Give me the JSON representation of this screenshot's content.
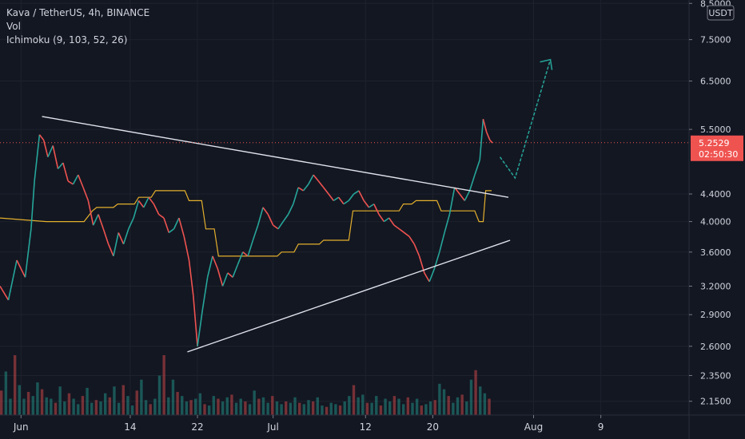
{
  "legend": {
    "title": "Kava / TetherUS, 4h, BINANCE",
    "vol": "Vol",
    "ichimoku": "Ichimoku (9, 103, 52, 26)"
  },
  "chart_data": {
    "type": "line",
    "symbol": "Kava / TetherUS",
    "interval": "4h",
    "exchange": "BINANCE",
    "currency": "USDT",
    "y_scale": "log",
    "ylim": [
      2.05,
      8.6
    ],
    "y_ticks": [
      {
        "label": "8.5000",
        "value": 8.5
      },
      {
        "label": "7.5000",
        "value": 7.5
      },
      {
        "label": "6.5000",
        "value": 6.5
      },
      {
        "label": "5.5000",
        "value": 5.5
      },
      {
        "label": "4.4000",
        "value": 4.4
      },
      {
        "label": "4.0000",
        "value": 4.0
      },
      {
        "label": "3.6000",
        "value": 3.6
      },
      {
        "label": "3.2000",
        "value": 3.2
      },
      {
        "label": "2.9000",
        "value": 2.9
      },
      {
        "label": "2.6000",
        "value": 2.6
      },
      {
        "label": "2.3500",
        "value": 2.35
      },
      {
        "label": "2.1500",
        "value": 2.15
      }
    ],
    "x_ticks": [
      {
        "label": "Jun",
        "day": 0
      },
      {
        "label": "14",
        "day": 13
      },
      {
        "label": "22",
        "day": 21
      },
      {
        "label": "Jul",
        "day": 30
      },
      {
        "label": "12",
        "day": 41
      },
      {
        "label": "20",
        "day": 49
      },
      {
        "label": "Aug",
        "day": 61
      },
      {
        "label": "9",
        "day": 69
      }
    ],
    "xlim": [
      -2.5,
      79.5
    ],
    "last_price": {
      "value": 5.2529,
      "label": "5.2529",
      "countdown": "02:50:30"
    },
    "price_path": [
      [
        -2.5,
        3.2
      ],
      [
        -1.5,
        3.05
      ],
      [
        -0.5,
        3.5
      ],
      [
        0.5,
        3.3
      ],
      [
        1.2,
        3.9
      ],
      [
        1.6,
        4.6
      ],
      [
        2.2,
        5.4
      ],
      [
        2.7,
        5.3
      ],
      [
        3.2,
        5.0
      ],
      [
        3.8,
        5.2
      ],
      [
        4.4,
        4.8
      ],
      [
        5.0,
        4.9
      ],
      [
        5.6,
        4.6
      ],
      [
        6.2,
        4.55
      ],
      [
        6.8,
        4.7
      ],
      [
        7.4,
        4.5
      ],
      [
        8.0,
        4.3
      ],
      [
        8.6,
        3.95
      ],
      [
        9.2,
        4.1
      ],
      [
        9.8,
        3.9
      ],
      [
        10.4,
        3.7
      ],
      [
        11.0,
        3.55
      ],
      [
        11.6,
        3.85
      ],
      [
        12.2,
        3.7
      ],
      [
        12.8,
        3.9
      ],
      [
        13.4,
        4.05
      ],
      [
        14.0,
        4.3
      ],
      [
        14.6,
        4.2
      ],
      [
        15.2,
        4.35
      ],
      [
        15.8,
        4.25
      ],
      [
        16.4,
        4.1
      ],
      [
        17.0,
        4.05
      ],
      [
        17.6,
        3.85
      ],
      [
        18.2,
        3.9
      ],
      [
        18.8,
        4.05
      ],
      [
        19.4,
        3.8
      ],
      [
        20.0,
        3.5
      ],
      [
        20.5,
        3.1
      ],
      [
        21.0,
        2.6
      ],
      [
        21.6,
        2.95
      ],
      [
        22.2,
        3.3
      ],
      [
        22.8,
        3.55
      ],
      [
        23.4,
        3.4
      ],
      [
        24.0,
        3.2
      ],
      [
        24.6,
        3.35
      ],
      [
        25.2,
        3.3
      ],
      [
        25.8,
        3.45
      ],
      [
        26.4,
        3.6
      ],
      [
        27.0,
        3.55
      ],
      [
        27.6,
        3.75
      ],
      [
        28.2,
        3.95
      ],
      [
        28.8,
        4.2
      ],
      [
        29.4,
        4.1
      ],
      [
        30.0,
        3.95
      ],
      [
        30.6,
        3.9
      ],
      [
        31.2,
        4.0
      ],
      [
        31.8,
        4.1
      ],
      [
        32.4,
        4.25
      ],
      [
        33.0,
        4.5
      ],
      [
        33.6,
        4.45
      ],
      [
        34.2,
        4.55
      ],
      [
        34.8,
        4.7
      ],
      [
        35.4,
        4.6
      ],
      [
        36.0,
        4.5
      ],
      [
        36.6,
        4.4
      ],
      [
        37.2,
        4.3
      ],
      [
        37.8,
        4.35
      ],
      [
        38.4,
        4.25
      ],
      [
        39.0,
        4.3
      ],
      [
        39.6,
        4.4
      ],
      [
        40.2,
        4.45
      ],
      [
        40.8,
        4.3
      ],
      [
        41.4,
        4.2
      ],
      [
        42.0,
        4.25
      ],
      [
        42.6,
        4.1
      ],
      [
        43.2,
        4.0
      ],
      [
        43.8,
        4.05
      ],
      [
        44.4,
        3.95
      ],
      [
        45.0,
        3.9
      ],
      [
        45.6,
        3.85
      ],
      [
        46.2,
        3.8
      ],
      [
        46.8,
        3.7
      ],
      [
        47.4,
        3.55
      ],
      [
        48.0,
        3.35
      ],
      [
        48.6,
        3.25
      ],
      [
        49.2,
        3.4
      ],
      [
        49.8,
        3.6
      ],
      [
        50.4,
        3.85
      ],
      [
        51.0,
        4.1
      ],
      [
        51.6,
        4.5
      ],
      [
        52.2,
        4.4
      ],
      [
        52.8,
        4.3
      ],
      [
        53.4,
        4.45
      ],
      [
        54.0,
        4.7
      ],
      [
        54.6,
        4.95
      ],
      [
        55.0,
        5.7
      ],
      [
        55.4,
        5.45
      ],
      [
        55.8,
        5.3
      ],
      [
        56.1,
        5.25
      ]
    ],
    "cloud_lines": [
      [
        -2.5,
        4.05
      ],
      [
        3.0,
        4.0
      ],
      [
        5.0,
        4.0
      ],
      [
        7.5,
        4.0
      ],
      [
        8.5,
        4.15
      ],
      [
        9.0,
        4.2
      ],
      [
        11.0,
        4.2
      ],
      [
        11.5,
        4.25
      ],
      [
        13.5,
        4.25
      ],
      [
        14.0,
        4.35
      ],
      [
        15.5,
        4.35
      ],
      [
        16.0,
        4.45
      ],
      [
        19.5,
        4.45
      ],
      [
        20.0,
        4.3
      ],
      [
        21.5,
        4.3
      ],
      [
        22.0,
        3.9
      ],
      [
        23.0,
        3.9
      ],
      [
        23.5,
        3.55
      ],
      [
        30.5,
        3.55
      ],
      [
        31.0,
        3.6
      ],
      [
        32.5,
        3.6
      ],
      [
        33.0,
        3.7
      ],
      [
        35.5,
        3.7
      ],
      [
        36.0,
        3.75
      ],
      [
        39.0,
        3.75
      ],
      [
        39.5,
        4.15
      ],
      [
        45.0,
        4.15
      ],
      [
        45.5,
        4.25
      ],
      [
        46.5,
        4.25
      ],
      [
        47.0,
        4.3
      ],
      [
        49.5,
        4.3
      ],
      [
        50.0,
        4.15
      ],
      [
        54.0,
        4.15
      ],
      [
        54.5,
        4.0
      ],
      [
        55.0,
        4.0
      ],
      [
        55.3,
        4.45
      ],
      [
        56.0,
        4.45
      ]
    ],
    "triangle": {
      "upper": [
        [
          2.5,
          5.75
        ],
        [
          58.0,
          4.35
        ]
      ],
      "lower": [
        [
          19.8,
          2.55
        ],
        [
          58.2,
          3.75
        ]
      ]
    },
    "forecast_arrow": [
      [
        57.0,
        5.0
      ],
      [
        58.8,
        4.65
      ],
      [
        63.0,
        7.0
      ]
    ],
    "volume": [
      18,
      32,
      12,
      44,
      22,
      12,
      17,
      14,
      24,
      19,
      13,
      12,
      9,
      21,
      10,
      16,
      12,
      8,
      14,
      20,
      9,
      11,
      10,
      16,
      13,
      21,
      9,
      22,
      14,
      7,
      18,
      26,
      11,
      8,
      12,
      29,
      44,
      13,
      26,
      17,
      14,
      10,
      11,
      12,
      16,
      8,
      7,
      14,
      12,
      10,
      13,
      15,
      9,
      12,
      10,
      8,
      18,
      12,
      13,
      9,
      14,
      10,
      8,
      10,
      9,
      13,
      9,
      8,
      11,
      10,
      13,
      7,
      6,
      9,
      8,
      7,
      10,
      14,
      22,
      13,
      15,
      9,
      9,
      14,
      7,
      12,
      10,
      14,
      12,
      8,
      13,
      9,
      12,
      7,
      8,
      10,
      11,
      23,
      19,
      14,
      9,
      13,
      15,
      10,
      26,
      33,
      21,
      16,
      12
    ],
    "grid": true,
    "colors": {
      "up": "#26a69a",
      "down": "#ef5350",
      "price_line": "#ef5350",
      "baseline": "#fbc02d",
      "arrow": "#26a69a",
      "background": "#131722"
    }
  }
}
